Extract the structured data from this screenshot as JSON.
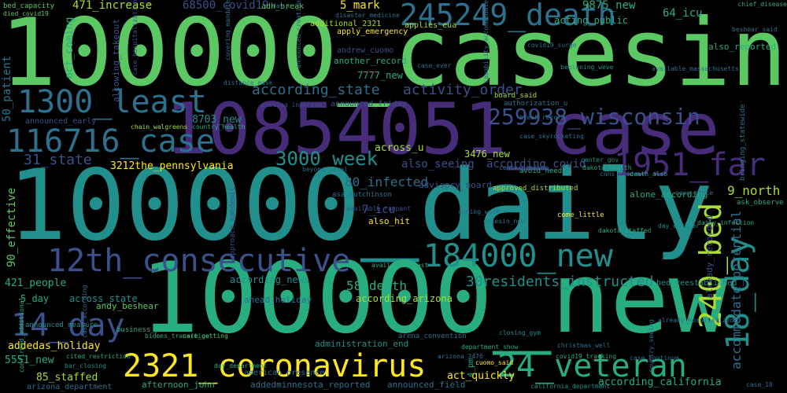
{
  "palette": [
    "#440154",
    "#472c7a",
    "#3b518b",
    "#2c718e",
    "#21908d",
    "#27ad81",
    "#5cc863",
    "#aadc32",
    "#fde725"
  ],
  "words": [
    {
      "text": "100000_casesin",
      "color": "#5cc863"
    },
    {
      "text": "10854051_case",
      "color": "#472c7a"
    },
    {
      "text": "100000_daily",
      "color": "#21908d"
    },
    {
      "text": "100000_new",
      "color": "#27ad81"
    },
    {
      "text": "245249_death",
      "color": "#2c718e"
    },
    {
      "text": "259938_wisconsin",
      "color": "#3b518b"
    },
    {
      "text": "1300_least",
      "color": "#2c718e"
    },
    {
      "text": "116716_case",
      "color": "#2c718e"
    },
    {
      "text": "1951_far",
      "color": "#472c7a"
    },
    {
      "text": "12th_consecutive",
      "color": "#3b518b"
    },
    {
      "text": "184000_new",
      "color": "#21908d"
    },
    {
      "text": "2321_coronavirus",
      "color": "#fde725"
    },
    {
      "text": "24_veteran",
      "color": "#27ad81"
    },
    {
      "text": "14_day",
      "color": "#3b518b"
    },
    {
      "text": "240_bed",
      "color": "#aadc32"
    },
    {
      "text": "18_day",
      "color": "#21908d"
    },
    {
      "text": "3000_week",
      "color": "#21908d"
    },
    {
      "text": "31_state",
      "color": "#3b518b"
    },
    {
      "text": "30residents_instructed",
      "color": "#21908d"
    },
    {
      "text": "according_state",
      "color": "#2c718e"
    },
    {
      "text": "activity_order",
      "color": "#3b518b"
    },
    {
      "text": "according_covid",
      "color": "#3b518b"
    },
    {
      "text": "80_infected",
      "color": "#2c718e"
    },
    {
      "text": "9_north",
      "color": "#aadc32"
    },
    {
      "text": "3212the_pennsylvania",
      "color": "#fde725"
    },
    {
      "text": "8703_new",
      "color": "#21908d"
    },
    {
      "text": "58_death",
      "color": "#27ad81"
    },
    {
      "text": "7_icu",
      "color": "#3b518b"
    },
    {
      "text": "5_mark",
      "color": "#fde725"
    },
    {
      "text": "471_increase",
      "color": "#aadc32"
    },
    {
      "text": "68500_covid19",
      "color": "#3b518b"
    },
    {
      "text": "9875_new",
      "color": "#27ad81"
    },
    {
      "text": "64_icu",
      "color": "#27ad81"
    },
    {
      "text": "7777_new",
      "color": "#27ad81"
    },
    {
      "text": "3476_new",
      "color": "#aadc32"
    },
    {
      "text": "5551_new",
      "color": "#27ad81"
    },
    {
      "text": "85_staffed",
      "color": "#aadc32"
    },
    {
      "text": "421_people",
      "color": "#27ad81"
    },
    {
      "text": "5_day",
      "color": "#27ad81"
    },
    {
      "text": "addedas_holiday",
      "color": "#fde725"
    },
    {
      "text": "act_quickly",
      "color": "#fde725"
    },
    {
      "text": "according_california",
      "color": "#27ad81"
    },
    {
      "text": "according_news",
      "color": "#21908d"
    },
    {
      "text": "according_arizona",
      "color": "#aadc32"
    },
    {
      "text": "across_state",
      "color": "#21908d"
    },
    {
      "text": "across_u",
      "color": "#aadc32"
    },
    {
      "text": "also_seeing",
      "color": "#3b518b"
    },
    {
      "text": "also_hit",
      "color": "#fde725"
    },
    {
      "text": "also_reported",
      "color": "#27ad81"
    },
    {
      "text": "acting_public",
      "color": "#27ad81"
    },
    {
      "text": "accommodate_potential",
      "color": "#2c718e"
    },
    {
      "text": "alone_according",
      "color": "#27ad81"
    },
    {
      "text": "already_recorded",
      "color": "#3b518b"
    },
    {
      "text": "90_effective",
      "color": "#5cc863"
    },
    {
      "text": "act_coming",
      "color": "#27ad81"
    },
    {
      "text": "allowing_takeout",
      "color": "#3b518b"
    },
    {
      "text": "andy_beshear",
      "color": "#5cc863"
    },
    {
      "text": "ahead_holiday",
      "color": "#2c718e"
    },
    {
      "text": "administration_end",
      "color": "#21908d"
    },
    {
      "text": "advisory_board",
      "color": "#3b518b"
    },
    {
      "text": "apply_emergency",
      "color": "#fde725"
    },
    {
      "text": "additional_2321",
      "color": "#aadc32"
    },
    {
      "text": "applies_eua",
      "color": "#aadc32"
    },
    {
      "text": "american_presence",
      "color": "#2c718e"
    },
    {
      "text": "another_record",
      "color": "#27ad81"
    },
    {
      "text": "announced_friday",
      "color": "#3b518b"
    },
    {
      "text": "50_patient",
      "color": "#2c718e"
    },
    {
      "text": "announced_early",
      "color": "#3b518b"
    },
    {
      "text": "afternoon_john",
      "color": "#27ad81"
    },
    {
      "text": "addedminnesota_reported",
      "color": "#2c718e"
    },
    {
      "text": "announced_field",
      "color": "#2c718e"
    },
    {
      "text": "arizona_department",
      "color": "#2c718e"
    },
    {
      "text": "adh_break",
      "color": "#5cc863"
    },
    {
      "text": "andrew_cuomo",
      "color": "#3b518b"
    },
    {
      "text": "board_said",
      "color": "#aadc32"
    },
    {
      "text": "approved_distributed",
      "color": "#aadc32"
    },
    {
      "text": "approach_pandemic",
      "color": "#3b518b"
    },
    {
      "text": "authorization_u",
      "color": "#2c718e"
    },
    {
      "text": "break_record",
      "color": "#2c718e"
    },
    {
      "text": "bed_capacity",
      "color": "#5cc863"
    },
    {
      "text": "died_covid19",
      "color": "#5cc863"
    },
    {
      "text": "chain_walgreens",
      "color": "#aadc32"
    },
    {
      "text": "country_health",
      "color": "#27ad81"
    },
    {
      "text": "chief_disease",
      "color": "#27ad81"
    },
    {
      "text": "beshear_said",
      "color": "#2c718e"
    },
    {
      "text": "avoid_need",
      "color": "#27ad81"
    },
    {
      "text": "care_getting",
      "color": "#5cc863"
    },
    {
      "text": "cuomo_said",
      "color": "#fde725"
    },
    {
      "text": "beyond_level",
      "color": "#2c718e"
    },
    {
      "text": "asa_hutchinson",
      "color": "#2c718e"
    },
    {
      "text": "come_little",
      "color": "#fde725"
    },
    {
      "text": "ask_observe",
      "color": "#27ad81"
    },
    {
      "text": "cnns_erica",
      "color": "#2c718e"
    },
    {
      "text": "death_also",
      "color": "#27ad81"
    },
    {
      "text": "case_since",
      "color": "#2c718e"
    },
    {
      "text": "center_gov",
      "color": "#21908d"
    },
    {
      "text": "dakota_health",
      "color": "#27ad81"
    },
    {
      "text": "bed_reestablished",
      "color": "#21908d"
    },
    {
      "text": "arena_convention",
      "color": "#2c718e"
    },
    {
      "text": "closing_gym",
      "color": "#21908d"
    },
    {
      "text": "cited_restriction",
      "color": "#27ad81"
    },
    {
      "text": "bar_closing",
      "color": "#21908d"
    },
    {
      "text": "california_department",
      "color": "#21908d"
    },
    {
      "text": "case_18",
      "color": "#2c718e"
    },
    {
      "text": "available_rampant",
      "color": "#3b518b"
    },
    {
      "text": "casesin_new",
      "color": "#2c718e"
    },
    {
      "text": "covid19_tracking",
      "color": "#27ad81"
    },
    {
      "text": "center_indoor",
      "color": "#2c718e"
    },
    {
      "text": "case_skyrocketing",
      "color": "#2c718e"
    },
    {
      "text": "beginning_weve",
      "color": "#21908d"
    },
    {
      "text": "case_hospitalization",
      "color": "#3b518b"
    },
    {
      "text": "distance_mask",
      "color": "#2c718e"
    },
    {
      "text": "disaster_medicine",
      "color": "#2c718e"
    },
    {
      "text": "coming_week",
      "color": "#2c718e"
    },
    {
      "text": "4_pm",
      "color": "#27ad81"
    },
    {
      "text": "arizona_3476",
      "color": "#2c718e"
    },
    {
      "text": "bidens_transition",
      "color": "#27ad81"
    },
    {
      "text": "announced_measure",
      "color": "#21908d"
    },
    {
      "text": "business_public",
      "color": "#27ad81"
    },
    {
      "text": "available_least",
      "color": "#27ad81"
    },
    {
      "text": "christmas_well",
      "color": "#2c718e"
    },
    {
      "text": "case_continue",
      "color": "#2c718e"
    },
    {
      "text": "covid19_surge",
      "color": "#2c718e"
    },
    {
      "text": "case_ever",
      "color": "#2c718e"
    },
    {
      "text": "department_show",
      "color": "#27ad81"
    },
    {
      "text": "available_massachusetts",
      "color": "#2c718e"
    },
    {
      "text": "capability_accommodate",
      "color": "#2c718e"
    },
    {
      "text": "covering_mandate",
      "color": "#2c718e"
    },
    {
      "text": "day_u",
      "color": "#2c718e"
    },
    {
      "text": "closing_inperson",
      "color": "#3b518b"
    },
    {
      "text": "announced_creation",
      "color": "#2c718e"
    },
    {
      "text": "dakota_staffed",
      "color": "#27ad81"
    },
    {
      "text": "confirmed_additional",
      "color": "#27ad81"
    },
    {
      "text": "day_department",
      "color": "#27ad81"
    },
    {
      "text": "country_seeing",
      "color": "#2c718e"
    },
    {
      "text": "day_earlier",
      "color": "#21908d"
    },
    {
      "text": "daily_infection",
      "color": "#27ad81"
    },
    {
      "text": "bringing_statewide",
      "color": "#2c718e"
    },
    {
      "text": "case_according",
      "color": "#2c718e"
    },
    {
      "text": "already_hospitalized",
      "color": "#2c718e"
    }
  ]
}
